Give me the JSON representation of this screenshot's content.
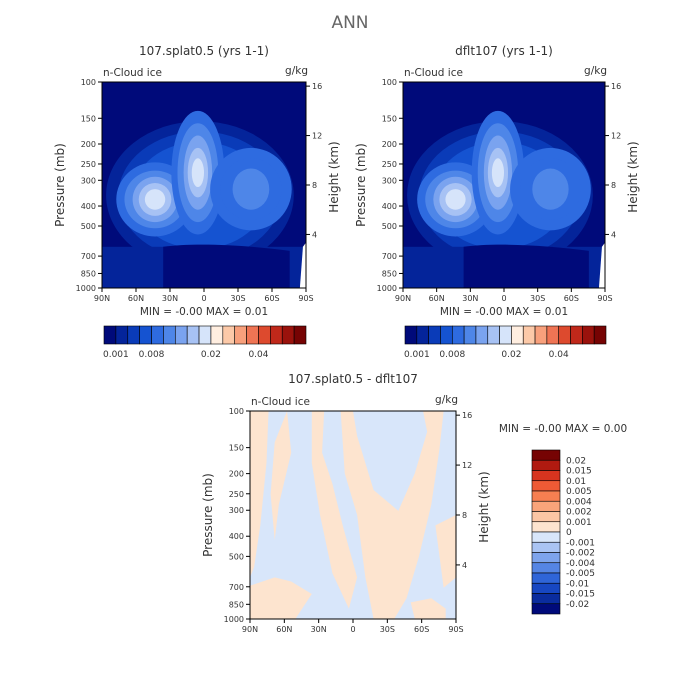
{
  "figure_title": "ANN",
  "chart_data": [
    {
      "type": "heatmap",
      "title": "107.splat0.5 (yrs 1-1)",
      "variable_label": "n-Cloud ice",
      "units": "g/kg",
      "xlabel": "",
      "ylabel": "Pressure (mb)",
      "y2label": "Height (km)",
      "x_ticks": [
        "90N",
        "60N",
        "30N",
        "0",
        "30S",
        "60S",
        "90S"
      ],
      "y_ticks": [
        "100",
        "150",
        "200",
        "250",
        "300",
        "400",
        "500",
        "700",
        "850",
        "1000"
      ],
      "y2_ticks": [
        "16",
        "12",
        "8",
        "4"
      ],
      "ylim": [
        1000,
        100
      ],
      "min_max": "MIN =  -0.00   MAX =   0.01",
      "colorbar": {
        "colors": [
          "#000a7a",
          "#04249a",
          "#0a3bb8",
          "#1553d1",
          "#2e6be0",
          "#4e86e8",
          "#7aa3ef",
          "#a7c2f4",
          "#d6e4fa",
          "#ffeee0",
          "#fcc9a8",
          "#f8a07c",
          "#ef7454",
          "#dd4a2e",
          "#c0281a",
          "#9a120c",
          "#760303"
        ],
        "labels": [
          "0.001",
          "0.008",
          "0.02",
          "0.04"
        ]
      }
    },
    {
      "type": "heatmap",
      "title": "dflt107 (yrs 1-1)",
      "variable_label": "n-Cloud ice",
      "units": "g/kg",
      "xlabel": "",
      "ylabel": "Pressure (mb)",
      "y2label": "Height (km)",
      "x_ticks": [
        "90N",
        "60N",
        "30N",
        "0",
        "30S",
        "60S",
        "90S"
      ],
      "y_ticks": [
        "100",
        "150",
        "200",
        "250",
        "300",
        "400",
        "500",
        "700",
        "850",
        "1000"
      ],
      "y2_ticks": [
        "16",
        "12",
        "8",
        "4"
      ],
      "ylim": [
        1000,
        100
      ],
      "min_max": "MIN =  -0.00   MAX =   0.01",
      "colorbar": {
        "colors": [
          "#000a7a",
          "#04249a",
          "#0a3bb8",
          "#1553d1",
          "#2e6be0",
          "#4e86e8",
          "#7aa3ef",
          "#a7c2f4",
          "#d6e4fa",
          "#ffeee0",
          "#fcc9a8",
          "#f8a07c",
          "#ef7454",
          "#dd4a2e",
          "#c0281a",
          "#9a120c",
          "#760303"
        ],
        "labels": [
          "0.001",
          "0.008",
          "0.02",
          "0.04"
        ]
      }
    },
    {
      "type": "heatmap",
      "title": "107.splat0.5 - dflt107",
      "variable_label": "n-Cloud ice",
      "units": "g/kg",
      "xlabel": "",
      "ylabel": "Pressure (mb)",
      "y2label": "Height (km)",
      "x_ticks": [
        "90N",
        "60N",
        "30N",
        "0",
        "30S",
        "60S",
        "90S"
      ],
      "y_ticks": [
        "100",
        "150",
        "200",
        "250",
        "300",
        "400",
        "500",
        "700",
        "850",
        "1000"
      ],
      "y2_ticks": [
        "16",
        "12",
        "8",
        "4"
      ],
      "ylim": [
        1000,
        100
      ],
      "min_max": "MIN =   -0.00   MAX =    0.00",
      "colorbar": {
        "colors": [
          "#760303",
          "#b01a10",
          "#d7341f",
          "#ee5a35",
          "#f67f51",
          "#f9a47a",
          "#fcc6a4",
          "#fde4cf",
          "#d8e6fa",
          "#aac4f3",
          "#7ea4ec",
          "#5585e4",
          "#2f65d8",
          "#1747c2",
          "#0a2c9e",
          "#000a7a"
        ],
        "labels": [
          "0.02",
          "0.015",
          "0.01",
          "0.005",
          "0.004",
          "0.002",
          "0.001",
          "0",
          "-0.001",
          "-0.002",
          "-0.004",
          "-0.005",
          "-0.01",
          "-0.015",
          "-0.02"
        ]
      }
    }
  ]
}
